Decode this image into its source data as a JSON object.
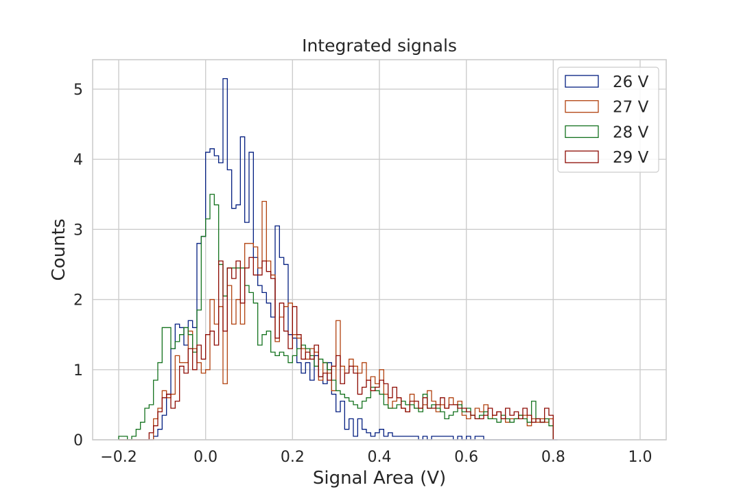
{
  "chart_data": {
    "type": "histogram",
    "title": "Integrated signals",
    "xlabel": "Signal Area (V)",
    "ylabel": "Counts",
    "xlim": [
      -0.26,
      1.06
    ],
    "ylim": [
      0,
      5.42
    ],
    "xticks": [
      -0.2,
      0.0,
      0.2,
      0.4,
      0.6,
      0.8,
      1.0
    ],
    "xtick_labels": [
      "−0.2",
      "0.0",
      "0.2",
      "0.4",
      "0.6",
      "0.8",
      "1.0"
    ],
    "yticks": [
      0,
      1,
      2,
      3,
      4,
      5
    ],
    "ytick_labels": [
      "0",
      "1",
      "2",
      "3",
      "4",
      "5"
    ],
    "grid": true,
    "legend_position": "top-right",
    "bin_start": -0.2,
    "bin_width": 0.01,
    "series": [
      {
        "name": "26 V",
        "color": "#001c7f",
        "values": [
          0,
          0,
          0,
          0,
          0,
          0,
          0,
          0,
          0.05,
          0.15,
          0.35,
          0.65,
          1.3,
          1.65,
          1.6,
          1.35,
          1.7,
          1.6,
          2.8,
          2.9,
          4.1,
          4.15,
          4.05,
          3.95,
          5.15,
          3.85,
          3.3,
          3.35,
          4.32,
          3.1,
          4.1,
          2.6,
          2.2,
          2.1,
          1.95,
          1.75,
          3.05,
          2.6,
          2.5,
          1.5,
          1.45,
          1.1,
          0.95,
          1.1,
          0.85,
          1.2,
          0.9,
          0.8,
          1.1,
          0.65,
          0.4,
          0.55,
          0.15,
          0.3,
          0.05,
          0.3,
          0.15,
          0.1,
          0.05,
          0.1,
          0.15,
          0.05,
          0.1,
          0.05,
          0.05,
          0.05,
          0.05,
          0.05,
          0.05,
          0,
          0.05,
          0,
          0.05,
          0.05,
          0.05,
          0.05,
          0.05,
          0,
          0.05,
          0,
          0.05,
          0,
          0.05,
          0.05,
          0,
          0,
          0,
          0,
          0,
          0,
          0,
          0,
          0,
          0,
          0,
          0,
          0,
          0,
          0,
          0,
          0
        ]
      },
      {
        "name": "27 V",
        "color": "#b1400d",
        "values": [
          0,
          0,
          0,
          0,
          0,
          0,
          0,
          0,
          0.3,
          0.45,
          0.7,
          0.6,
          0.65,
          1.2,
          1.1,
          1.1,
          1.55,
          1.3,
          1.1,
          0.95,
          1.0,
          2.0,
          1.65,
          1.9,
          0.8,
          2.2,
          1.65,
          2.0,
          1.65,
          2.8,
          2.8,
          2.75,
          2.45,
          3.4,
          2.55,
          2.35,
          1.4,
          1.75,
          1.9,
          1.95,
          1.5,
          1.45,
          1.3,
          1.15,
          1.3,
          1.25,
          0.85,
          1.1,
          0.95,
          0.7,
          1.7,
          1.05,
          0.95,
          1.15,
          1.05,
          0.95,
          1.1,
          0.85,
          0.9,
          0.8,
          1.0,
          0.65,
          0.45,
          0.55,
          0.6,
          0.45,
          0.4,
          0.65,
          0.45,
          0.45,
          0.5,
          0.7,
          0.55,
          0.4,
          0.5,
          0.45,
          0.6,
          0.5,
          0.55,
          0.35,
          0.3,
          0.35,
          0.45,
          0.4,
          0.5,
          0.3,
          0.35,
          0.4,
          0.3,
          0.25,
          0.3,
          0.3,
          0.35,
          0.35,
          0.2,
          0.3,
          0.25,
          0.3,
          0.25,
          0.3
        ]
      },
      {
        "name": "28 V",
        "color": "#12711c",
        "values": [
          0.05,
          0.05,
          0,
          0.05,
          0.15,
          0.25,
          0.45,
          0.5,
          0.85,
          1.1,
          1.6,
          1.6,
          1.3,
          1.4,
          1.5,
          1.6,
          1.5,
          1.25,
          1.85,
          2.9,
          3.15,
          3.5,
          3.35,
          2.5,
          2.05,
          2.45,
          2.45,
          2.45,
          2.45,
          2.2,
          2.1,
          1.95,
          1.35,
          1.5,
          1.55,
          1.25,
          1.2,
          1.25,
          1.2,
          1.1,
          1.2,
          1.3,
          1.35,
          1.3,
          1.2,
          1.05,
          1.15,
          1.1,
          1.0,
          0.85,
          0.7,
          0.65,
          0.6,
          0.55,
          0.5,
          0.45,
          0.55,
          0.6,
          0.75,
          0.7,
          0.65,
          0.5,
          0.45,
          0.45,
          0.5,
          0.55,
          0.5,
          0.5,
          0.45,
          0.4,
          0.65,
          0.45,
          0.5,
          0.45,
          0.4,
          0.3,
          0.35,
          0.4,
          0.5,
          0.4,
          0.45,
          0.35,
          0.3,
          0.35,
          0.4,
          0.3,
          0.3,
          0.25,
          0.35,
          0.3,
          0.25,
          0.3,
          0.35,
          0.3,
          0.25,
          0.55,
          0.3,
          0.25,
          0.3,
          0.2
        ]
      },
      {
        "name": "29 V",
        "color": "#8c0800",
        "values": [
          0,
          0,
          0,
          0,
          0,
          0,
          0,
          0.1,
          0.2,
          0.4,
          0.6,
          0.65,
          0.45,
          0.55,
          1.05,
          0.95,
          1.3,
          1.0,
          1.35,
          1.15,
          1.5,
          1.55,
          1.35,
          2.55,
          1.55,
          2.45,
          2.3,
          2.55,
          1.95,
          2.45,
          2.6,
          2.35,
          2.35,
          2.55,
          2.4,
          2.3,
          1.45,
          1.95,
          1.55,
          1.3,
          1.9,
          1.5,
          1.15,
          1.25,
          1.15,
          1.35,
          0.9,
          0.95,
          0.85,
          1.05,
          1.2,
          0.8,
          0.95,
          1.05,
          0.95,
          0.65,
          0.75,
          0.85,
          0.7,
          0.75,
          0.85,
          0.8,
          0.6,
          0.75,
          0.6,
          0.45,
          0.4,
          0.55,
          0.55,
          0.45,
          0.6,
          0.45,
          0.45,
          0.5,
          0.6,
          0.45,
          0.5,
          0.5,
          0.45,
          0.45,
          0.4,
          0.35,
          0.3,
          0.3,
          0.35,
          0.45,
          0.35,
          0.4,
          0.3,
          0.45,
          0.35,
          0.4,
          0.3,
          0.45,
          0.35,
          0.25,
          0.3,
          0.25,
          0.45,
          0.35
        ]
      }
    ]
  }
}
